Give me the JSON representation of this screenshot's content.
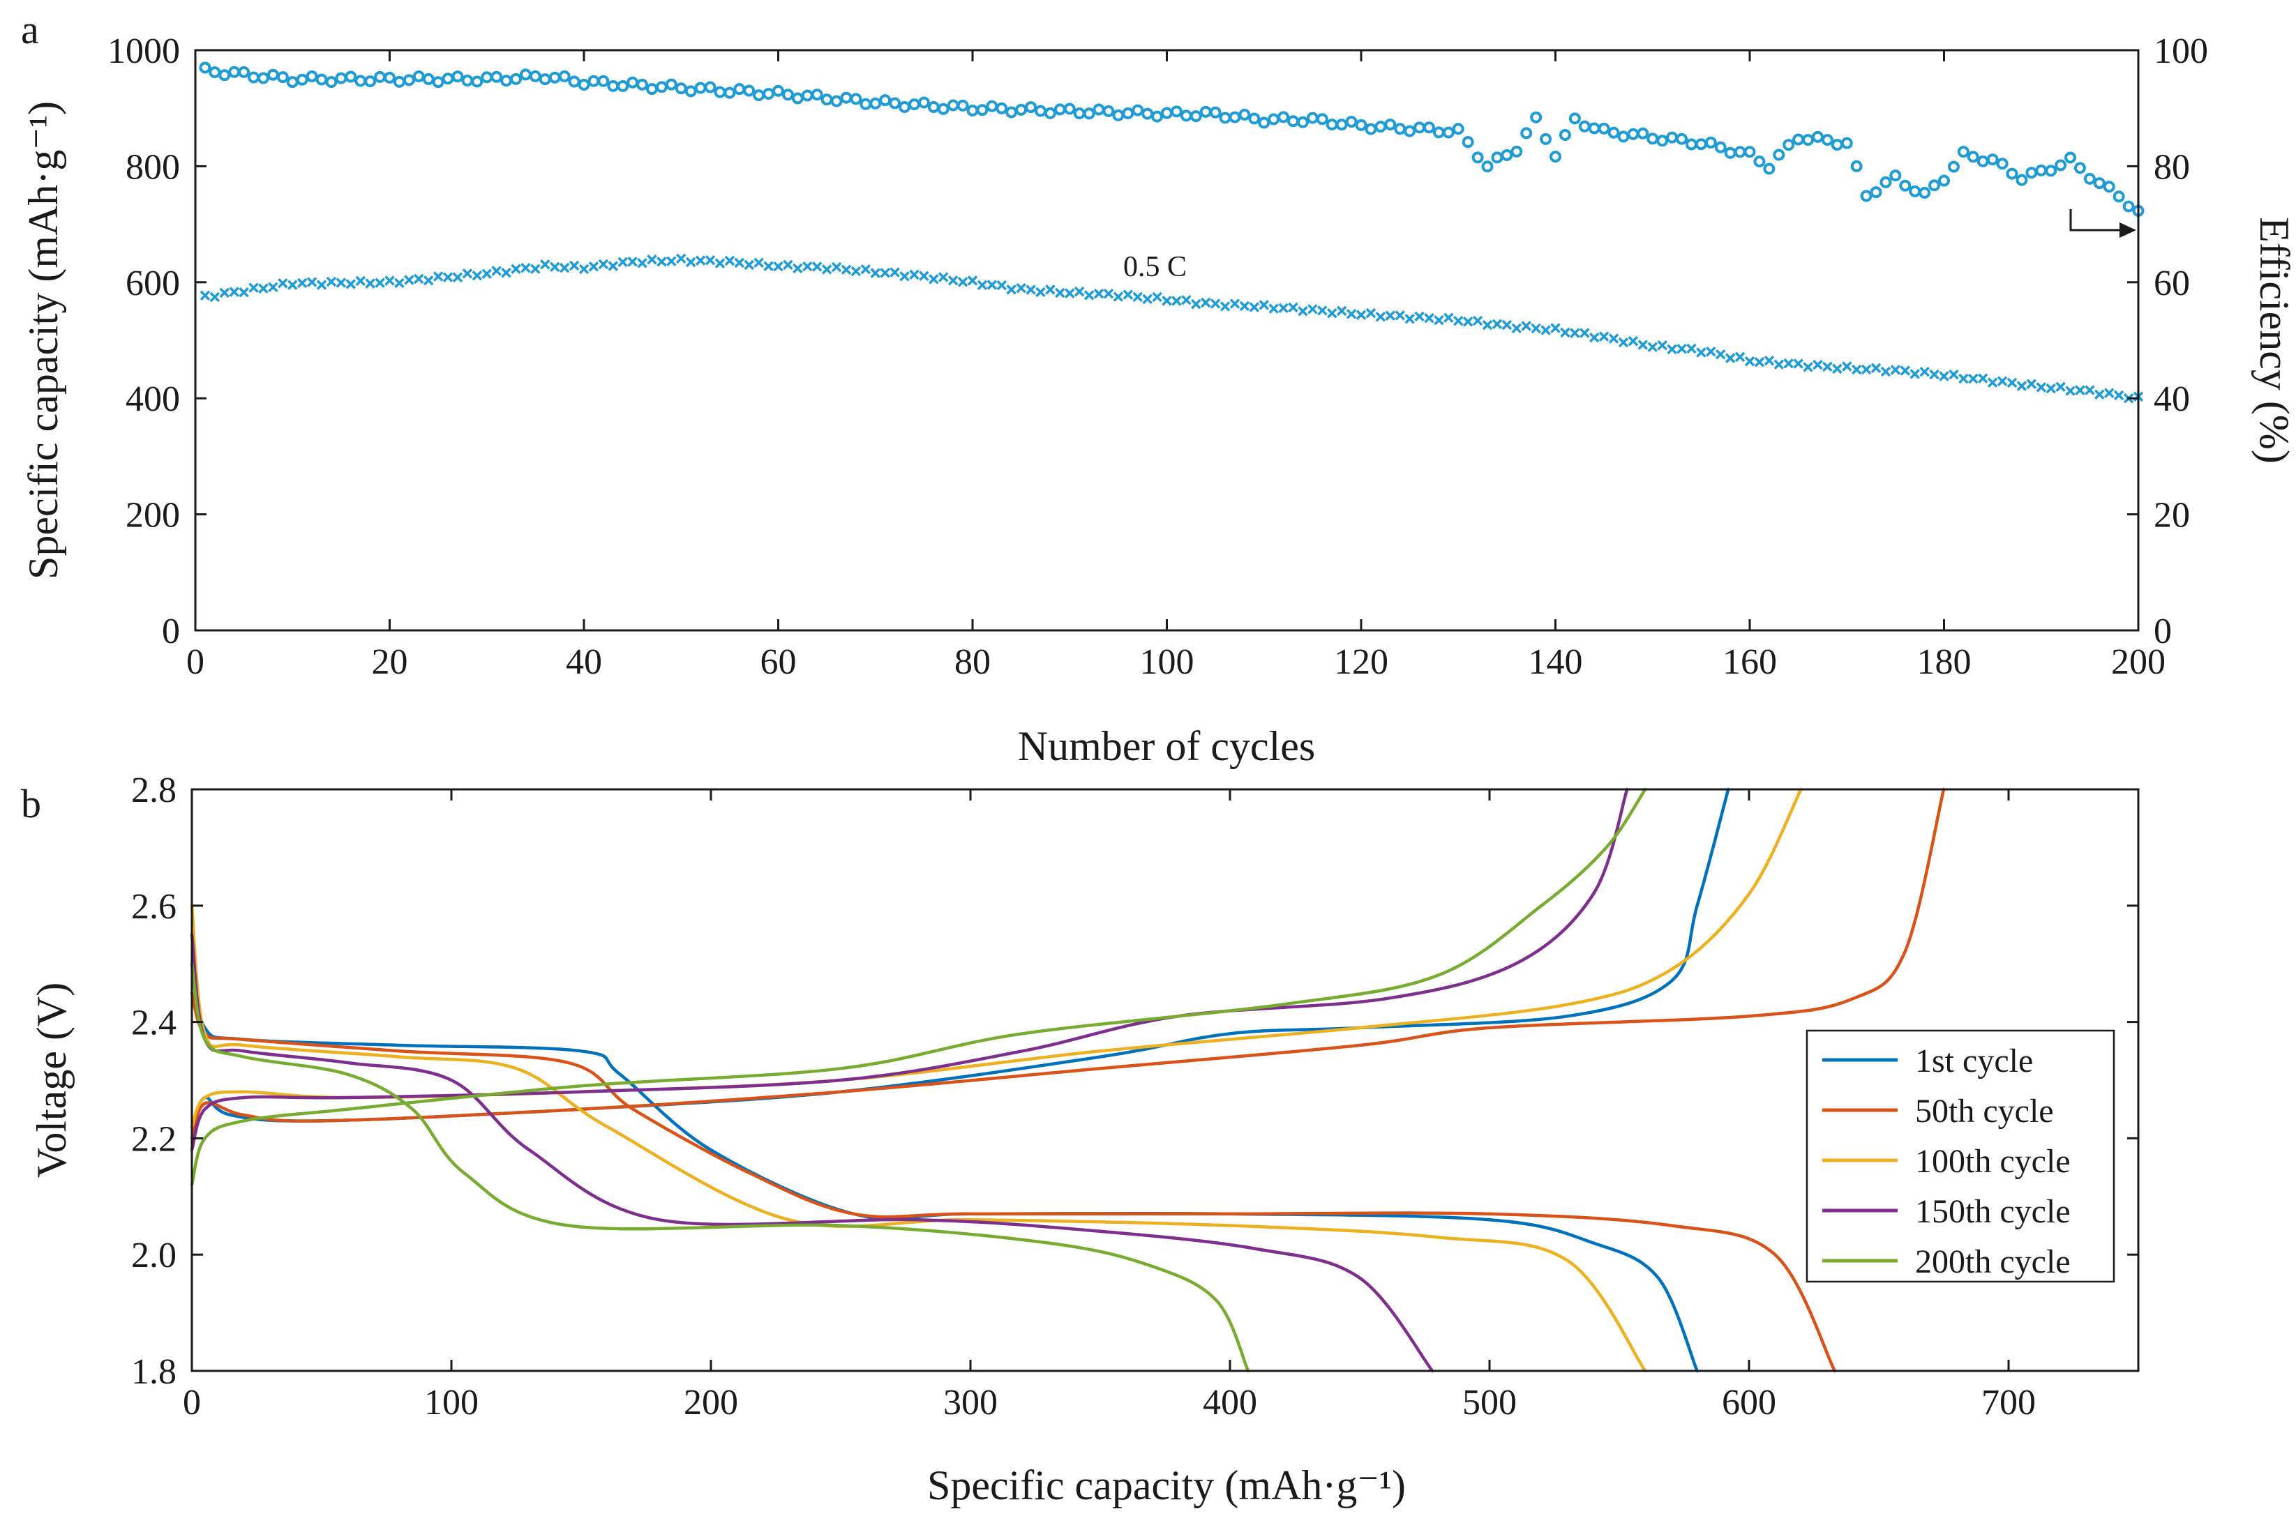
{
  "chart_data": [
    {
      "panel": "a",
      "type": "scatter",
      "xlabel": "Number of cycles",
      "ylabel_left": "Specific capacity (mAh·g⁻¹)",
      "ylabel_right": "Efficiency (%)",
      "xlim": [
        0,
        200
      ],
      "ylim_left": [
        0,
        1000
      ],
      "ylim_right": [
        0,
        100
      ],
      "xticks": [
        "0",
        "20",
        "40",
        "60",
        "80",
        "100",
        "120",
        "140",
        "160",
        "180",
        "200"
      ],
      "yticks_left": [
        "0",
        "200",
        "400",
        "600",
        "800",
        "1000"
      ],
      "yticks_right": [
        "0",
        "20",
        "40",
        "60",
        "80",
        "100"
      ],
      "annotation": "0.5 C",
      "color": "#1f9bd6",
      "series": [
        {
          "name": "Specific capacity",
          "axis": "left",
          "marker": "x",
          "points": [
            [
              1,
              575
            ],
            [
              10,
              598
            ],
            [
              20,
              600
            ],
            [
              30,
              615
            ],
            [
              36,
              628
            ],
            [
              40,
              625
            ],
            [
              45,
              635
            ],
            [
              50,
              638
            ],
            [
              55,
              635
            ],
            [
              60,
              628
            ],
            [
              65,
              625
            ],
            [
              70,
              618
            ],
            [
              75,
              610
            ],
            [
              80,
              600
            ],
            [
              85,
              588
            ],
            [
              90,
              582
            ],
            [
              95,
              578
            ],
            [
              100,
              570
            ],
            [
              105,
              562
            ],
            [
              110,
              558
            ],
            [
              115,
              552
            ],
            [
              120,
              545
            ],
            [
              125,
              540
            ],
            [
              130,
              535
            ],
            [
              135,
              525
            ],
            [
              140,
              518
            ],
            [
              145,
              505
            ],
            [
              150,
              490
            ],
            [
              155,
              482
            ],
            [
              160,
              465
            ],
            [
              165,
              458
            ],
            [
              170,
              452
            ],
            [
              175,
              448
            ],
            [
              180,
              440
            ],
            [
              185,
              430
            ],
            [
              190,
              420
            ],
            [
              195,
              412
            ],
            [
              200,
              400
            ]
          ]
        },
        {
          "name": "Efficiency",
          "axis": "right",
          "marker": "o",
          "points": [
            [
              1,
              96.5
            ],
            [
              10,
              95
            ],
            [
              20,
              95
            ],
            [
              30,
              95
            ],
            [
              36,
              95.5
            ],
            [
              40,
              94.5
            ],
            [
              50,
              93.5
            ],
            [
              60,
              92.5
            ],
            [
              70,
              91
            ],
            [
              80,
              90
            ],
            [
              90,
              89.5
            ],
            [
              100,
              89
            ],
            [
              105,
              89
            ],
            [
              110,
              88
            ],
            [
              115,
              88
            ],
            [
              120,
              87
            ],
            [
              125,
              86.5
            ],
            [
              130,
              86
            ],
            [
              133,
              80
            ],
            [
              136,
              83
            ],
            [
              138,
              88
            ],
            [
              140,
              82
            ],
            [
              142,
              88
            ],
            [
              145,
              86
            ],
            [
              150,
              85
            ],
            [
              155,
              84
            ],
            [
              160,
              82
            ],
            [
              162,
              80
            ],
            [
              165,
              85
            ],
            [
              170,
              84
            ],
            [
              172,
              75
            ],
            [
              175,
              78
            ],
            [
              178,
              75
            ],
            [
              180,
              78
            ],
            [
              182,
              82
            ],
            [
              185,
              81
            ],
            [
              188,
              78
            ],
            [
              190,
              79
            ],
            [
              193,
              81
            ],
            [
              196,
              77
            ],
            [
              198,
              75
            ],
            [
              200,
              72
            ]
          ]
        }
      ]
    },
    {
      "panel": "b",
      "type": "line",
      "xlabel": "Specific capacity (mAh·g⁻¹)",
      "ylabel": "Voltage (V)",
      "xlim": [
        0,
        750
      ],
      "ylim": [
        1.8,
        2.8
      ],
      "xticks": [
        "0",
        "100",
        "200",
        "300",
        "400",
        "500",
        "600",
        "700"
      ],
      "yticks": [
        "1.8",
        "2.0",
        "2.2",
        "2.4",
        "2.6",
        "2.8"
      ],
      "legend_position": "right",
      "series": [
        {
          "name": "1st cycle",
          "color": "#0072bd",
          "discharge": [
            [
              0,
              2.5
            ],
            [
              5,
              2.39
            ],
            [
              20,
              2.37
            ],
            [
              80,
              2.36
            ],
            [
              150,
              2.35
            ],
            [
              165,
              2.31
            ],
            [
              200,
              2.18
            ],
            [
              255,
              2.07
            ],
            [
              300,
              2.07
            ],
            [
              400,
              2.07
            ],
            [
              500,
              2.06
            ],
            [
              540,
              2.02
            ],
            [
              565,
              1.96
            ],
            [
              580,
              1.8
            ]
          ],
          "charge": [
            [
              0,
              2.22
            ],
            [
              5,
              2.27
            ],
            [
              15,
              2.24
            ],
            [
              50,
              2.23
            ],
            [
              150,
              2.25
            ],
            [
              250,
              2.28
            ],
            [
              350,
              2.34
            ],
            [
              400,
              2.38
            ],
            [
              450,
              2.39
            ],
            [
              530,
              2.41
            ],
            [
              570,
              2.47
            ],
            [
              580,
              2.6
            ],
            [
              592,
              2.8
            ]
          ]
        },
        {
          "name": "50th cycle",
          "color": "#d95319",
          "discharge": [
            [
              0,
              2.45
            ],
            [
              5,
              2.38
            ],
            [
              20,
              2.37
            ],
            [
              80,
              2.35
            ],
            [
              145,
              2.33
            ],
            [
              170,
              2.25
            ],
            [
              215,
              2.14
            ],
            [
              255,
              2.07
            ],
            [
              300,
              2.07
            ],
            [
              400,
              2.07
            ],
            [
              500,
              2.07
            ],
            [
              570,
              2.05
            ],
            [
              610,
              2.0
            ],
            [
              633,
              1.8
            ]
          ],
          "charge": [
            [
              0,
              2.2
            ],
            [
              5,
              2.26
            ],
            [
              20,
              2.24
            ],
            [
              50,
              2.23
            ],
            [
              150,
              2.25
            ],
            [
              250,
              2.28
            ],
            [
              350,
              2.32
            ],
            [
              450,
              2.36
            ],
            [
              500,
              2.39
            ],
            [
              600,
              2.41
            ],
            [
              640,
              2.44
            ],
            [
              660,
              2.52
            ],
            [
              675,
              2.8
            ]
          ]
        },
        {
          "name": "100th cycle",
          "color": "#edb120",
          "discharge": [
            [
              0,
              2.6
            ],
            [
              5,
              2.38
            ],
            [
              20,
              2.36
            ],
            [
              80,
              2.34
            ],
            [
              125,
              2.32
            ],
            [
              160,
              2.22
            ],
            [
              230,
              2.06
            ],
            [
              300,
              2.06
            ],
            [
              400,
              2.05
            ],
            [
              480,
              2.03
            ],
            [
              530,
              1.99
            ],
            [
              560,
              1.8
            ]
          ],
          "charge": [
            [
              0,
              2.22
            ],
            [
              5,
              2.27
            ],
            [
              20,
              2.28
            ],
            [
              60,
              2.27
            ],
            [
              150,
              2.28
            ],
            [
              250,
              2.3
            ],
            [
              350,
              2.35
            ],
            [
              450,
              2.39
            ],
            [
              530,
              2.43
            ],
            [
              570,
              2.49
            ],
            [
              600,
              2.62
            ],
            [
              620,
              2.8
            ]
          ]
        },
        {
          "name": "150th cycle",
          "color": "#7e2f8e",
          "discharge": [
            [
              0,
              2.55
            ],
            [
              5,
              2.37
            ],
            [
              20,
              2.35
            ],
            [
              60,
              2.33
            ],
            [
              100,
              2.3
            ],
            [
              130,
              2.18
            ],
            [
              180,
              2.06
            ],
            [
              280,
              2.06
            ],
            [
              350,
              2.04
            ],
            [
              410,
              2.01
            ],
            [
              450,
              1.96
            ],
            [
              478,
              1.8
            ]
          ],
          "charge": [
            [
              0,
              2.18
            ],
            [
              5,
              2.25
            ],
            [
              20,
              2.27
            ],
            [
              60,
              2.27
            ],
            [
              150,
              2.28
            ],
            [
              250,
              2.3
            ],
            [
              320,
              2.35
            ],
            [
              380,
              2.41
            ],
            [
              460,
              2.44
            ],
            [
              510,
              2.5
            ],
            [
              540,
              2.62
            ],
            [
              553,
              2.8
            ]
          ]
        },
        {
          "name": "200th cycle",
          "color": "#77ac30",
          "discharge": [
            [
              0,
              2.5
            ],
            [
              5,
              2.37
            ],
            [
              20,
              2.34
            ],
            [
              60,
              2.31
            ],
            [
              85,
              2.25
            ],
            [
              105,
              2.14
            ],
            [
              145,
              2.05
            ],
            [
              250,
              2.05
            ],
            [
              330,
              2.02
            ],
            [
              370,
              1.98
            ],
            [
              395,
              1.92
            ],
            [
              407,
              1.8
            ]
          ],
          "charge": [
            [
              0,
              2.12
            ],
            [
              5,
              2.2
            ],
            [
              20,
              2.23
            ],
            [
              60,
              2.25
            ],
            [
              150,
              2.29
            ],
            [
              250,
              2.32
            ],
            [
              320,
              2.38
            ],
            [
              420,
              2.43
            ],
            [
              480,
              2.48
            ],
            [
              520,
              2.6
            ],
            [
              545,
              2.7
            ],
            [
              560,
              2.8
            ]
          ]
        }
      ]
    }
  ]
}
